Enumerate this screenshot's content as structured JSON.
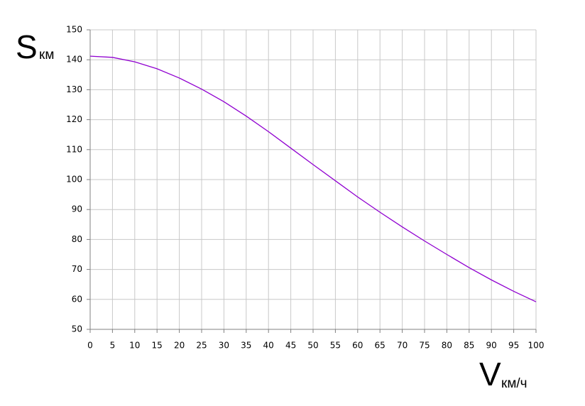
{
  "chart_data": {
    "type": "line",
    "ylabel": "S",
    "ylabel_unit": "км",
    "xlabel": "V",
    "xlabel_unit": "км/ч",
    "x": [
      0,
      5,
      10,
      15,
      20,
      25,
      30,
      35,
      40,
      45,
      50,
      55,
      60,
      65,
      70,
      75,
      80,
      85,
      90,
      95,
      100
    ],
    "series": [
      {
        "color": "#9000d0",
        "values": [
          141.2,
          140.8,
          139.3,
          137,
          133.9,
          130.2,
          126,
          121.2,
          116,
          110.5,
          105,
          99.6,
          94.2,
          89.1,
          84.2,
          79.5,
          75,
          70.6,
          66.5,
          62.7,
          59.2
        ]
      }
    ],
    "xlim": [
      0,
      100
    ],
    "xticks": [
      0,
      5,
      10,
      15,
      20,
      25,
      30,
      35,
      40,
      45,
      50,
      55,
      60,
      65,
      70,
      75,
      80,
      85,
      90,
      95,
      100
    ],
    "ylim": [
      50,
      150
    ],
    "yticks": [
      50,
      60,
      70,
      80,
      90,
      100,
      110,
      120,
      130,
      140,
      150
    ],
    "grid": true
  }
}
